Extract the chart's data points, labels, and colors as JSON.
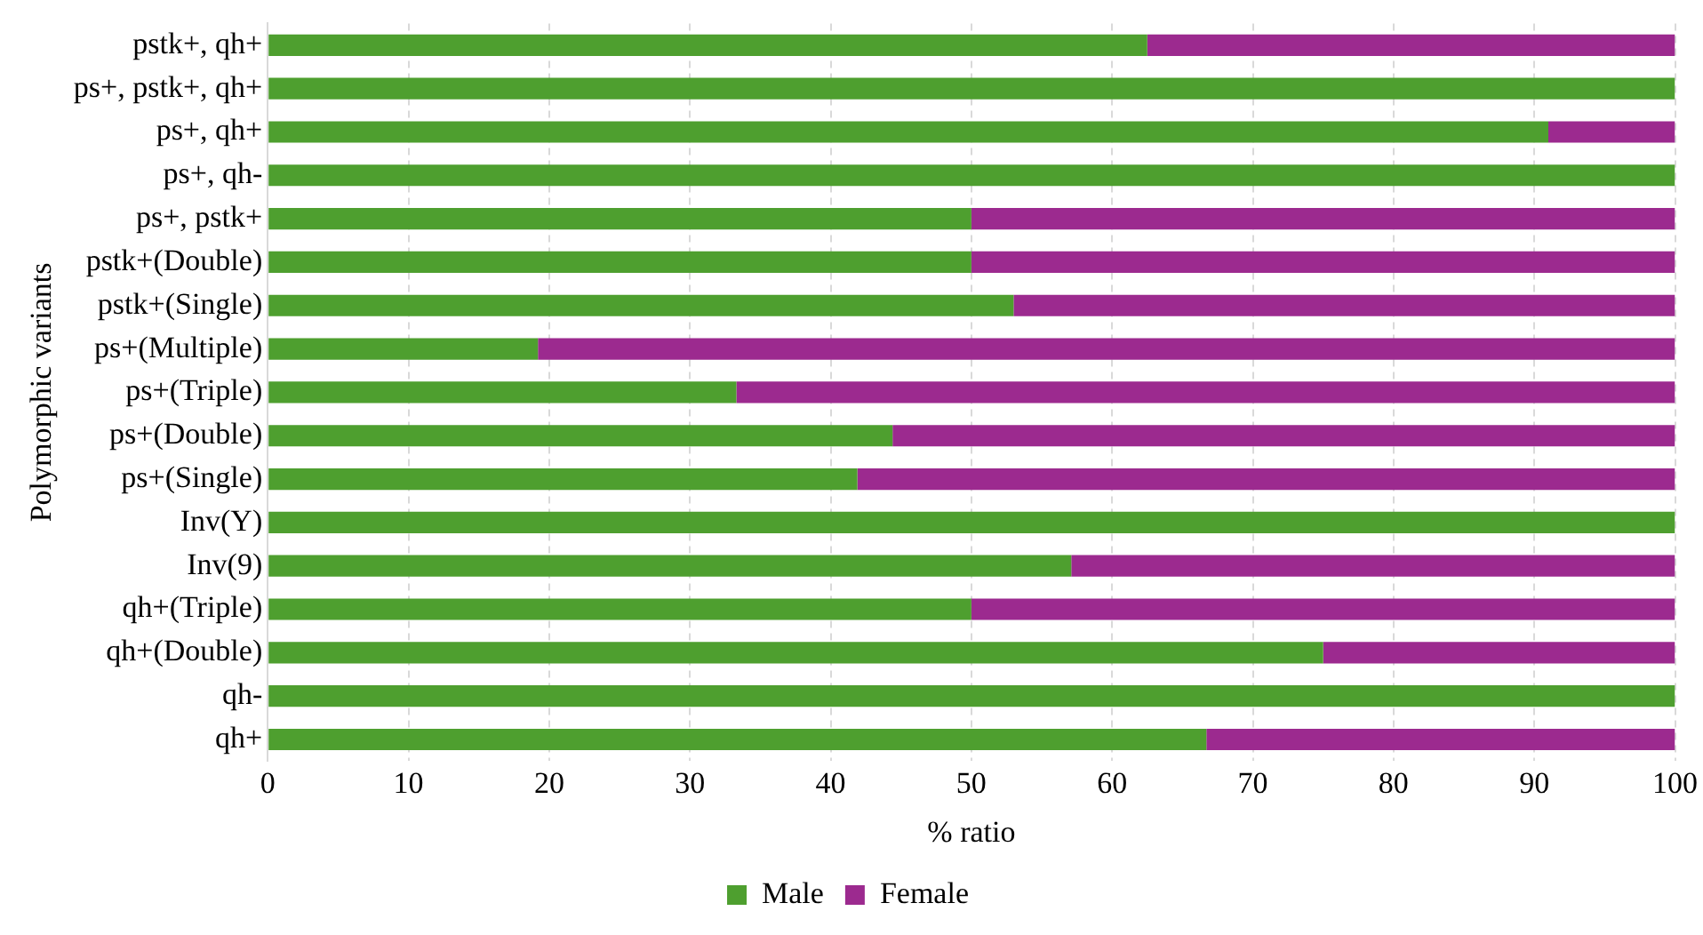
{
  "chart_data": {
    "type": "bar",
    "orientation": "horizontal",
    "stacked": true,
    "xlabel": "% ratio",
    "ylabel": "Polymorphic variants",
    "categories": [
      "pstk+, qh+",
      "ps+, pstk+, qh+",
      "ps+, qh+",
      "ps+, qh-",
      "ps+, pstk+",
      "pstk+(Double)",
      "pstk+(Single)",
      "ps+(Multiple)",
      "ps+(Triple)",
      "ps+(Double)",
      "ps+(Single)",
      "Inv(Y)",
      "Inv(9)",
      "qh+(Triple)",
      "qh+(Double)",
      "qh-",
      "qh+"
    ],
    "series": [
      {
        "name": "Male",
        "color": "#4e9f2f",
        "values": [
          62.5,
          100,
          91,
          100,
          50,
          50,
          53,
          19.2,
          33.3,
          44.4,
          41.9,
          100,
          57.1,
          50,
          75,
          100,
          66.7
        ]
      },
      {
        "name": "Female",
        "color": "#9c2a8f",
        "values": [
          37.5,
          0,
          9,
          0,
          50,
          50,
          47,
          80.8,
          66.7,
          55.6,
          58.1,
          0,
          42.9,
          50,
          25,
          0,
          33.3
        ]
      }
    ],
    "xlim": [
      0,
      100
    ],
    "xticks": [
      0,
      10,
      20,
      30,
      40,
      50,
      60,
      70,
      80,
      90,
      100
    ],
    "grid": "x",
    "legend": "bottom"
  }
}
